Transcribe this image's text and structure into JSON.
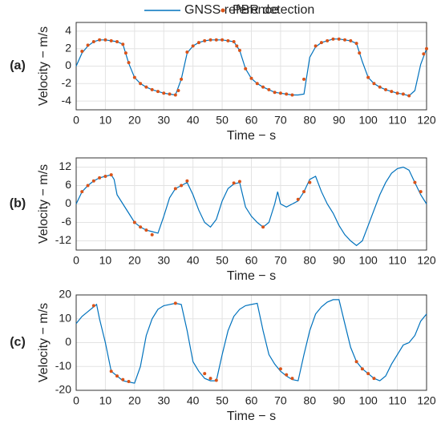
{
  "chart_data": [
    {
      "type": "line",
      "panel_label": "(a)",
      "ylabel": "Velocity − m/s",
      "xlabel": "Time − s",
      "xlim": [
        0,
        120
      ],
      "xticks": [
        0,
        10,
        20,
        30,
        40,
        50,
        60,
        70,
        80,
        90,
        100,
        110,
        120
      ],
      "ylim": [
        -5,
        5
      ],
      "yticks": [
        -4,
        -2,
        0,
        2,
        4
      ],
      "grid": true,
      "series": [
        {
          "name": "GNSS reference",
          "color": "#0072bd",
          "type": "line",
          "x": [
            0,
            2,
            4,
            6,
            8,
            10,
            12,
            14,
            16,
            18,
            20,
            22,
            24,
            26,
            28,
            30,
            32,
            34,
            36,
            38,
            40,
            42,
            44,
            46,
            48,
            50,
            52,
            54,
            56,
            58,
            60,
            62,
            64,
            66,
            68,
            70,
            72,
            74,
            76,
            78,
            80,
            82,
            84,
            86,
            88,
            90,
            92,
            94,
            96,
            98,
            100,
            102,
            104,
            106,
            108,
            110,
            112,
            114,
            116,
            118,
            120
          ],
          "values": [
            0,
            1.5,
            2.3,
            2.8,
            3.0,
            3.0,
            2.9,
            2.8,
            2.5,
            0.3,
            -1.3,
            -2.0,
            -2.4,
            -2.7,
            -2.9,
            -3.1,
            -3.2,
            -3.3,
            -1.5,
            1.5,
            2.3,
            2.7,
            2.9,
            3.0,
            3.0,
            3.0,
            2.9,
            2.8,
            1.8,
            -0.3,
            -1.4,
            -2.0,
            -2.4,
            -2.7,
            -3.0,
            -3.1,
            -3.2,
            -3.3,
            -3.3,
            -3.2,
            1.0,
            2.2,
            2.7,
            2.9,
            3.1,
            3.1,
            3.0,
            2.9,
            2.6,
            0.5,
            -1.3,
            -2.0,
            -2.4,
            -2.7,
            -2.9,
            -3.1,
            -3.2,
            -3.4,
            -2.8,
            0.2,
            2.0
          ]
        },
        {
          "name": "PBR detection",
          "color": "#d95319",
          "type": "scatter",
          "x": [
            2,
            4,
            6,
            8,
            10,
            12,
            14,
            16,
            17,
            18,
            20,
            22,
            24,
            26,
            28,
            30,
            32,
            34,
            35,
            36,
            38,
            40,
            42,
            44,
            46,
            48,
            50,
            52,
            54,
            55,
            56,
            58,
            60,
            62,
            64,
            66,
            68,
            70,
            72,
            74,
            78,
            82,
            84,
            86,
            88,
            90,
            92,
            94,
            96,
            97,
            100,
            102,
            104,
            106,
            108,
            110,
            112,
            114,
            119,
            120
          ],
          "values": [
            1.7,
            2.4,
            2.8,
            3.0,
            3.0,
            2.9,
            2.8,
            2.5,
            1.5,
            0.4,
            -1.3,
            -2.0,
            -2.4,
            -2.7,
            -2.9,
            -3.1,
            -3.2,
            -3.3,
            -2.8,
            -1.5,
            1.6,
            2.3,
            2.7,
            2.9,
            3.0,
            3.0,
            3.0,
            2.9,
            2.8,
            2.3,
            1.8,
            -0.3,
            -1.4,
            -2.0,
            -2.4,
            -2.7,
            -3.0,
            -3.1,
            -3.2,
            -3.3,
            -1.5,
            2.3,
            2.7,
            2.9,
            3.1,
            3.1,
            3.0,
            2.9,
            2.6,
            1.5,
            -1.3,
            -2.0,
            -2.4,
            -2.7,
            -2.9,
            -3.1,
            -3.2,
            -3.4,
            1.4,
            2.0
          ]
        }
      ]
    },
    {
      "type": "line",
      "panel_label": "(b)",
      "ylabel": "Velocity − m/s",
      "xlabel": "Time − s",
      "xlim": [
        0,
        120
      ],
      "xticks": [
        0,
        10,
        20,
        30,
        40,
        50,
        60,
        70,
        80,
        90,
        100,
        110,
        120
      ],
      "ylim": [
        -15,
        15
      ],
      "yticks": [
        -12,
        -6,
        0,
        6,
        12
      ],
      "grid": true,
      "series": [
        {
          "color": "#0072bd",
          "type": "line",
          "x": [
            0,
            2,
            4,
            6,
            8,
            10,
            12,
            13,
            14,
            16,
            18,
            20,
            22,
            24,
            26,
            28,
            30,
            32,
            34,
            36,
            38,
            40,
            42,
            44,
            46,
            48,
            50,
            52,
            54,
            56,
            58,
            60,
            62,
            64,
            66,
            68,
            69,
            70,
            72,
            74,
            76,
            78,
            80,
            82,
            84,
            86,
            88,
            90,
            92,
            94,
            96,
            98,
            100,
            102,
            104,
            106,
            108,
            110,
            112,
            114,
            116,
            118,
            120
          ],
          "values": [
            0,
            4,
            6,
            7.5,
            8.5,
            9,
            9.5,
            8,
            3,
            0,
            -3,
            -6,
            -7.5,
            -8.5,
            -9,
            -9.5,
            -4,
            2,
            5,
            6,
            7,
            3,
            -2,
            -6,
            -7.5,
            -5,
            1,
            5,
            6.5,
            7,
            -1,
            -4,
            -6,
            -7.5,
            -6,
            0,
            4,
            0,
            -1,
            0,
            1,
            4,
            8,
            9,
            4,
            0,
            -3,
            -7,
            -10,
            -12,
            -13.5,
            -12,
            -7,
            -2,
            3,
            7,
            10,
            11.5,
            12,
            11,
            7,
            3,
            0
          ]
        },
        {
          "color": "#d95319",
          "type": "scatter",
          "x": [
            2,
            4,
            6,
            8,
            10,
            12,
            20,
            22,
            24,
            26,
            34,
            36,
            38,
            54,
            56,
            64,
            76,
            78,
            80,
            116,
            118
          ],
          "values": [
            4,
            6,
            7.5,
            8.5,
            9,
            9.5,
            -6,
            -7.5,
            -8.5,
            -10,
            5,
            6,
            7.5,
            6.8,
            7.3,
            -7.5,
            1.5,
            4,
            7,
            7,
            4
          ]
        }
      ]
    },
    {
      "type": "line",
      "panel_label": "(c)",
      "ylabel": "Velocity − m/s",
      "xlabel": "Time − s",
      "xlim": [
        0,
        120
      ],
      "xticks": [
        0,
        10,
        20,
        30,
        40,
        50,
        60,
        70,
        80,
        90,
        100,
        110,
        120
      ],
      "ylim": [
        -20,
        20
      ],
      "yticks": [
        -20,
        -10,
        0,
        10,
        20
      ],
      "grid": true,
      "series": [
        {
          "color": "#0072bd",
          "type": "line",
          "x": [
            0,
            2,
            4,
            6,
            7,
            8,
            10,
            12,
            14,
            16,
            18,
            20,
            22,
            24,
            26,
            28,
            30,
            32,
            34,
            36,
            38,
            40,
            42,
            44,
            46,
            48,
            50,
            52,
            54,
            56,
            58,
            60,
            62,
            64,
            66,
            68,
            70,
            72,
            74,
            76,
            78,
            80,
            82,
            84,
            86,
            88,
            90,
            92,
            94,
            96,
            98,
            100,
            102,
            104,
            106,
            108,
            110,
            112,
            114,
            116,
            118,
            120
          ],
          "values": [
            8,
            11,
            13,
            15,
            16,
            10,
            0,
            -12,
            -14,
            -16,
            -16.5,
            -17,
            -10,
            3,
            10,
            14,
            15.5,
            16,
            16.5,
            16,
            5,
            -8,
            -12,
            -15,
            -16,
            -16,
            -5,
            5,
            11,
            14,
            15.5,
            16,
            16.5,
            5,
            -5,
            -9,
            -12,
            -14,
            -15.5,
            -16,
            -5,
            5,
            12,
            15,
            17,
            18,
            18,
            8,
            -2,
            -8,
            -11,
            -13,
            -15,
            -16,
            -14,
            -9,
            -5,
            -1,
            0,
            3,
            9,
            12
          ]
        },
        {
          "color": "#d95319",
          "type": "scatter",
          "x": [
            6,
            12,
            14,
            16,
            18,
            34,
            44,
            46,
            48,
            70,
            72,
            74,
            96,
            98,
            100,
            102
          ],
          "values": [
            15.5,
            -12,
            -14,
            -15.5,
            -16.3,
            16.5,
            -13,
            -15,
            -15.8,
            -11,
            -13.5,
            -15,
            -8,
            -11,
            -13,
            -15
          ]
        }
      ]
    }
  ]
}
